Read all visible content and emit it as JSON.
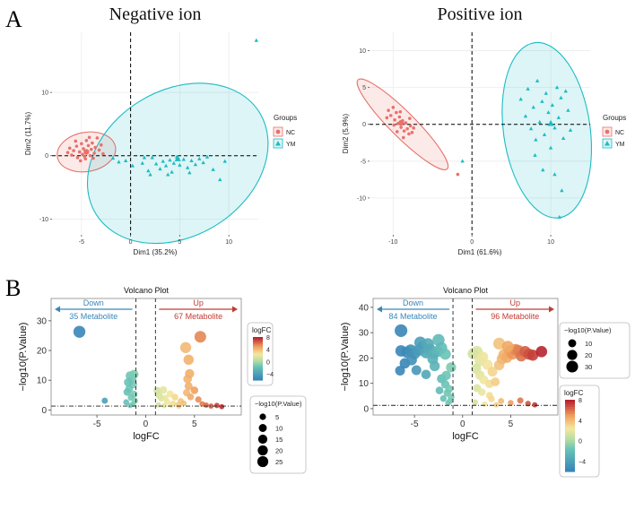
{
  "panel_labels": {
    "a": "A",
    "b": "B"
  },
  "chart_data": [
    {
      "id": "pca-negative",
      "type": "scatter",
      "title": "Negative ion",
      "xlabel": "Dim1 (35.2%)",
      "ylabel": "Dim2 (11.7%)",
      "xlim": [
        -8,
        13
      ],
      "ylim": [
        -12.5,
        19.5
      ],
      "xticks": [
        -5,
        0,
        5,
        10
      ],
      "yticks": [
        -10,
        0,
        10
      ],
      "legend": {
        "title": "Groups",
        "position": "right",
        "items": [
          "NC",
          "YM"
        ]
      },
      "ellipses": [
        {
          "group": "NC",
          "center": [
            -4.5,
            0.6
          ],
          "rx": 3.0,
          "ry": 3.1,
          "angle_deg": 10
        },
        {
          "group": "YM",
          "center": [
            4.8,
            -1.2
          ],
          "rx": 9.8,
          "ry": 11.5,
          "angle_deg": 32
        }
      ],
      "centroids": [
        {
          "group": "NC",
          "x": -4.5,
          "y": 0.6
        },
        {
          "group": "YM",
          "x": 4.8,
          "y": -0.5
        }
      ],
      "series": [
        {
          "name": "NC",
          "color": "#e8716b",
          "points": [
            [
              -6.2,
              1.2
            ],
            [
              -6.0,
              0.1
            ],
            [
              -5.8,
              0.8
            ],
            [
              -5.5,
              1.5
            ],
            [
              -5.4,
              -0.3
            ],
            [
              -5.2,
              0.6
            ],
            [
              -5.0,
              1.9
            ],
            [
              -4.9,
              0.2
            ],
            [
              -4.8,
              1.1
            ],
            [
              -4.6,
              -0.5
            ],
            [
              -4.5,
              2.4
            ],
            [
              -4.4,
              0.7
            ],
            [
              -4.3,
              1.6
            ],
            [
              -4.1,
              0.0
            ],
            [
              -4.0,
              1.0
            ],
            [
              -3.9,
              2.0
            ],
            [
              -3.7,
              0.4
            ],
            [
              -3.6,
              1.3
            ],
            [
              -3.4,
              2.8
            ],
            [
              -3.2,
              0.9
            ],
            [
              -3.0,
              1.7
            ],
            [
              -5.6,
              2.3
            ],
            [
              -4.7,
              -0.1
            ],
            [
              -3.8,
              -0.4
            ],
            [
              -5.1,
              -0.8
            ],
            [
              -6.4,
              0.5
            ],
            [
              -4.2,
              2.9
            ],
            [
              -2.8,
              0.3
            ]
          ]
        },
        {
          "name": "YM",
          "color": "#1bbcc4",
          "points": [
            [
              -1.8,
              -0.4
            ],
            [
              -1.2,
              -1.0
            ],
            [
              -0.5,
              -0.8
            ],
            [
              0.2,
              -1.6
            ],
            [
              1.2,
              -1.2
            ],
            [
              1.8,
              -2.4
            ],
            [
              2.2,
              -0.3
            ],
            [
              2.6,
              -1.3
            ],
            [
              3.0,
              -2.1
            ],
            [
              3.3,
              -0.9
            ],
            [
              3.6,
              -1.6
            ],
            [
              4.0,
              -0.7
            ],
            [
              4.2,
              -2.6
            ],
            [
              4.4,
              -1.2
            ],
            [
              4.7,
              -0.2
            ],
            [
              5.0,
              -1.5
            ],
            [
              5.4,
              -0.6
            ],
            [
              5.8,
              -1.9
            ],
            [
              6.2,
              -0.8
            ],
            [
              6.6,
              -1.4
            ],
            [
              7.0,
              -0.5
            ],
            [
              7.4,
              -1.1
            ],
            [
              7.8,
              -0.2
            ],
            [
              8.4,
              -2.2
            ],
            [
              9.1,
              -3.8
            ],
            [
              9.6,
              -0.9
            ],
            [
              1.4,
              -0.3
            ],
            [
              3.8,
              -3.0
            ],
            [
              6.0,
              -2.7
            ],
            [
              2.0,
              -3.0
            ],
            [
              12.8,
              18.2
            ]
          ]
        }
      ]
    },
    {
      "id": "pca-positive",
      "type": "scatter",
      "title": "Positive ion",
      "xlabel": "Dim1 (61.6%)",
      "ylabel": "Dim2 (5.9%)",
      "xlim": [
        -13,
        15
      ],
      "ylim": [
        -15,
        12.5
      ],
      "xticks": [
        -10,
        0,
        10
      ],
      "yticks": [
        -10,
        -5,
        0,
        5,
        10
      ],
      "legend": {
        "title": "Groups",
        "position": "right",
        "items": [
          "NC",
          "YM"
        ]
      },
      "ellipses": [
        {
          "group": "NC",
          "center": [
            -8.8,
            0.0
          ],
          "rx": 8.0,
          "ry": 1.7,
          "angle_deg": -45
        },
        {
          "group": "YM",
          "center": [
            9.5,
            -0.8
          ],
          "rx": 5.5,
          "ry": 12.0,
          "angle_deg": 8
        }
      ],
      "centroids": [
        {
          "group": "NC",
          "x": -9.0,
          "y": 0.2
        },
        {
          "group": "YM",
          "x": 10.0,
          "y": 0.1
        }
      ],
      "series": [
        {
          "name": "NC",
          "color": "#e8716b",
          "points": [
            [
              -10.6,
              1.9
            ],
            [
              -10.3,
              1.2
            ],
            [
              -10.0,
              2.3
            ],
            [
              -9.8,
              0.6
            ],
            [
              -9.6,
              1.6
            ],
            [
              -9.4,
              0.1
            ],
            [
              -9.2,
              1.0
            ],
            [
              -9.0,
              -0.4
            ],
            [
              -8.8,
              0.5
            ],
            [
              -8.6,
              -0.9
            ],
            [
              -8.4,
              0.2
            ],
            [
              -8.2,
              -0.6
            ],
            [
              -8.0,
              -1.3
            ],
            [
              -7.8,
              -0.2
            ],
            [
              -7.6,
              -1.1
            ],
            [
              -7.4,
              -0.5
            ],
            [
              -9.9,
              -0.1
            ],
            [
              -9.1,
              1.7
            ],
            [
              -8.7,
              -1.8
            ],
            [
              -10.8,
              0.9
            ],
            [
              -7.9,
              0.8
            ],
            [
              -9.5,
              -1.0
            ],
            [
              -1.8,
              -6.8
            ]
          ]
        },
        {
          "name": "YM",
          "color": "#1bbcc4",
          "points": [
            [
              6.2,
              3.4
            ],
            [
              6.8,
              1.1
            ],
            [
              7.1,
              4.8
            ],
            [
              7.5,
              -0.6
            ],
            [
              7.8,
              2.3
            ],
            [
              8.1,
              -2.1
            ],
            [
              8.3,
              5.9
            ],
            [
              8.6,
              0.3
            ],
            [
              8.9,
              3.1
            ],
            [
              9.2,
              -1.4
            ],
            [
              9.4,
              4.2
            ],
            [
              9.7,
              1.6
            ],
            [
              10.0,
              -3.2
            ],
            [
              10.2,
              2.6
            ],
            [
              10.5,
              -0.5
            ],
            [
              10.8,
              5.0
            ],
            [
              11.0,
              0.9
            ],
            [
              11.3,
              3.6
            ],
            [
              11.6,
              -1.9
            ],
            [
              11.9,
              4.5
            ],
            [
              12.2,
              1.9
            ],
            [
              9.0,
              -6.2
            ],
            [
              10.5,
              -6.8
            ],
            [
              11.4,
              -9.0
            ],
            [
              8.0,
              -4.2
            ],
            [
              12.5,
              -0.8
            ],
            [
              11.1,
              -12.6
            ],
            [
              -1.2,
              -5.0
            ]
          ]
        }
      ]
    },
    {
      "id": "volcano-negative",
      "type": "scatter",
      "title": "Volcano Plot",
      "xlabel": "logFC",
      "ylabel": "−log10(P.Value)",
      "xlim": [
        -9.7,
        9.8
      ],
      "ylim": [
        -1.7,
        37.5
      ],
      "xticks": [
        -5,
        0,
        5
      ],
      "yticks": [
        0,
        10,
        20,
        30
      ],
      "thresholds": {
        "x": [
          -1,
          1
        ],
        "y": 1.3
      },
      "down_label": "Down",
      "down_count": "35 Metabolite",
      "up_label": "Up",
      "up_count": "67 Metabolite",
      "color_legend": {
        "title": "logFC",
        "ticks": [
          "8",
          "4",
          "0",
          "−4"
        ],
        "range": [
          -6,
          8
        ]
      },
      "size_legend": {
        "title": "−log10(P.Value)",
        "items": [
          "5",
          "10",
          "15",
          "20",
          "25"
        ]
      },
      "points": [
        [
          -6.8,
          26.3
        ],
        [
          -4.2,
          3.1
        ],
        [
          -1.6,
          11.5
        ],
        [
          -1.4,
          10.2
        ],
        [
          -1.3,
          8.6
        ],
        [
          -1.7,
          7.1
        ],
        [
          -1.2,
          5.3
        ],
        [
          -1.5,
          4.2
        ],
        [
          -1.1,
          3.1
        ],
        [
          -1.3,
          2.0
        ],
        [
          -1.6,
          1.5
        ],
        [
          -1.8,
          9.3
        ],
        [
          -1.9,
          6.0
        ],
        [
          -1.2,
          12.0
        ],
        [
          -2.0,
          2.6
        ],
        [
          1.2,
          6.5
        ],
        [
          1.4,
          4.8
        ],
        [
          1.6,
          3.9
        ],
        [
          1.8,
          6.7
        ],
        [
          2.0,
          4.0
        ],
        [
          2.2,
          2.8
        ],
        [
          2.5,
          5.4
        ],
        [
          2.8,
          2.2
        ],
        [
          3.0,
          4.3
        ],
        [
          3.3,
          1.8
        ],
        [
          3.6,
          3.0
        ],
        [
          3.9,
          2.2
        ],
        [
          4.2,
          5.8
        ],
        [
          4.4,
          8.0
        ],
        [
          4.6,
          4.4
        ],
        [
          4.3,
          10.4
        ],
        [
          4.5,
          12.2
        ],
        [
          4.4,
          16.9
        ],
        [
          4.1,
          21.0
        ],
        [
          5.6,
          24.6
        ],
        [
          5.0,
          6.6
        ],
        [
          5.4,
          3.5
        ],
        [
          5.8,
          2.0
        ],
        [
          6.2,
          1.6
        ],
        [
          6.7,
          1.3
        ],
        [
          7.3,
          1.5
        ],
        [
          7.8,
          1.1
        ],
        [
          1.3,
          1.7
        ],
        [
          1.9,
          1.4
        ],
        [
          2.6,
          1.6
        ],
        [
          3.4,
          1.3
        ]
      ]
    },
    {
      "id": "volcano-positive",
      "type": "scatter",
      "title": "Volcano Plot",
      "xlabel": "logFC",
      "ylabel": "−log10(P.Value)",
      "xlim": [
        -9.3,
        9.9
      ],
      "ylim": [
        -2.5,
        43.5
      ],
      "xticks": [
        -5,
        0,
        5
      ],
      "yticks": [
        0,
        10,
        20,
        30,
        40
      ],
      "thresholds": {
        "x": [
          -1,
          1
        ],
        "y": 1.3
      },
      "down_label": "Down",
      "down_count": "84 Metabolite",
      "up_label": "Up",
      "up_count": "96 Metabolite",
      "color_legend": {
        "title": "logFC",
        "ticks": [
          "8",
          "4",
          "0",
          "−4"
        ],
        "range": [
          -6,
          8
        ]
      },
      "size_legend": {
        "title": "−log10(P.Value)",
        "items": [
          "10",
          "20",
          "30"
        ]
      },
      "points": [
        [
          -6.4,
          30.8
        ],
        [
          -6.4,
          22.8
        ],
        [
          -5.8,
          22.3
        ],
        [
          -5.4,
          23.1
        ],
        [
          -5.0,
          21.7
        ],
        [
          -4.6,
          23.0
        ],
        [
          -4.2,
          24.2
        ],
        [
          -3.8,
          22.1
        ],
        [
          -3.4,
          23.4
        ],
        [
          -3.0,
          21.8
        ],
        [
          -2.6,
          22.6
        ],
        [
          -2.2,
          24.0
        ],
        [
          -1.8,
          21.5
        ],
        [
          -6.0,
          17.9
        ],
        [
          -5.3,
          19.2
        ],
        [
          -4.4,
          26.1
        ],
        [
          -3.6,
          25.5
        ],
        [
          -3.1,
          19.6
        ],
        [
          -2.5,
          27.1
        ],
        [
          -2.9,
          16.8
        ],
        [
          -4.8,
          15.2
        ],
        [
          -6.5,
          15.0
        ],
        [
          -3.8,
          13.5
        ],
        [
          -2.2,
          11.8
        ],
        [
          -1.8,
          9.6
        ],
        [
          -1.4,
          7.8
        ],
        [
          -1.6,
          6.2
        ],
        [
          -1.2,
          4.6
        ],
        [
          -1.3,
          3.1
        ],
        [
          -1.5,
          2.3
        ],
        [
          -2.0,
          4.0
        ],
        [
          -1.7,
          13.1
        ],
        [
          -1.2,
          16.3
        ],
        [
          -2.4,
          7.2
        ],
        [
          1.1,
          21.7
        ],
        [
          1.5,
          22.5
        ],
        [
          1.8,
          18.8
        ],
        [
          2.1,
          20.4
        ],
        [
          1.4,
          15.8
        ],
        [
          2.6,
          17.3
        ],
        [
          1.8,
          13.2
        ],
        [
          2.2,
          11.4
        ],
        [
          2.8,
          9.8
        ],
        [
          1.5,
          8.1
        ],
        [
          2.0,
          6.5
        ],
        [
          3.1,
          14.6
        ],
        [
          3.4,
          10.6
        ],
        [
          2.8,
          5.2
        ],
        [
          3.8,
          17.2
        ],
        [
          4.1,
          19.6
        ],
        [
          4.3,
          21.3
        ],
        [
          4.6,
          20.2
        ],
        [
          4.9,
          22.7
        ],
        [
          5.2,
          21.6
        ],
        [
          5.5,
          23.3
        ],
        [
          5.8,
          22.9
        ],
        [
          6.1,
          20.8
        ],
        [
          6.5,
          22.5
        ],
        [
          6.9,
          21.5
        ],
        [
          7.3,
          21.1
        ],
        [
          8.2,
          22.5
        ],
        [
          3.8,
          25.7
        ],
        [
          4.7,
          24.5
        ],
        [
          3.0,
          3.8
        ],
        [
          4.0,
          3.0
        ],
        [
          5.0,
          2.3
        ],
        [
          6.0,
          3.2
        ],
        [
          6.8,
          2.0
        ],
        [
          7.5,
          1.5
        ],
        [
          2.3,
          1.8
        ],
        [
          1.3,
          2.5
        ],
        [
          3.5,
          1.5
        ]
      ]
    }
  ]
}
